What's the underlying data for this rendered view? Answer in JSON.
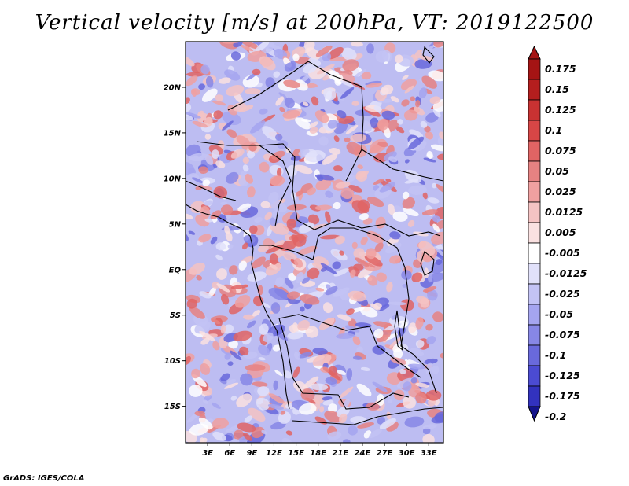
{
  "title": "Vertical velocity [m/s] at 200hPa, VT: 2019122500",
  "footer": "GrADS: IGES/COLA",
  "map": {
    "lat_range": [
      -19,
      25
    ],
    "lon_range": [
      0,
      35
    ],
    "lat_ticks": [
      {
        "value": 20,
        "label": "20N"
      },
      {
        "value": 15,
        "label": "15N"
      },
      {
        "value": 10,
        "label": "10N"
      },
      {
        "value": 5,
        "label": "5N"
      },
      {
        "value": 0,
        "label": "EQ"
      },
      {
        "value": -5,
        "label": "5S"
      },
      {
        "value": -10,
        "label": "10S"
      },
      {
        "value": -15,
        "label": "15S"
      }
    ],
    "lon_ticks": [
      {
        "value": 3,
        "label": "3E"
      },
      {
        "value": 6,
        "label": "6E"
      },
      {
        "value": 9,
        "label": "9E"
      },
      {
        "value": 12,
        "label": "12E"
      },
      {
        "value": 15,
        "label": "15E"
      },
      {
        "value": 18,
        "label": "18E"
      },
      {
        "value": 21,
        "label": "21E"
      },
      {
        "value": 24,
        "label": "24E"
      },
      {
        "value": 27,
        "label": "27E"
      },
      {
        "value": 30,
        "label": "30E"
      },
      {
        "value": 33,
        "label": "33E"
      }
    ]
  },
  "colorbar": {
    "levels": [
      {
        "label": "0.175",
        "color": "#a51414"
      },
      {
        "label": "0.15",
        "color": "#b41e1e"
      },
      {
        "label": "0.125",
        "color": "#c83232"
      },
      {
        "label": "0.1",
        "color": "#d74646"
      },
      {
        "label": "0.075",
        "color": "#e06464"
      },
      {
        "label": "0.05",
        "color": "#e68282"
      },
      {
        "label": "0.025",
        "color": "#f0a0a0"
      },
      {
        "label": "0.0125",
        "color": "#f5c3c3"
      },
      {
        "label": "0.005",
        "color": "#fae1e1"
      },
      {
        "label": "-0.005",
        "color": "#ffffff"
      },
      {
        "label": "-0.0125",
        "color": "#e1e1fa"
      },
      {
        "label": "-0.025",
        "color": "#c3c3f5"
      },
      {
        "label": "-0.05",
        "color": "#a5a5f0"
      },
      {
        "label": "-0.075",
        "color": "#8787e6"
      },
      {
        "label": "-0.1",
        "color": "#6969dc"
      },
      {
        "label": "-0.125",
        "color": "#4b4bd2"
      },
      {
        "label": "-0.175",
        "color": "#3232be"
      },
      {
        "label": "-0.2",
        "color": "#1e1ea5"
      }
    ],
    "top_color": "#a51414",
    "bottom_color": "#14148c"
  }
}
